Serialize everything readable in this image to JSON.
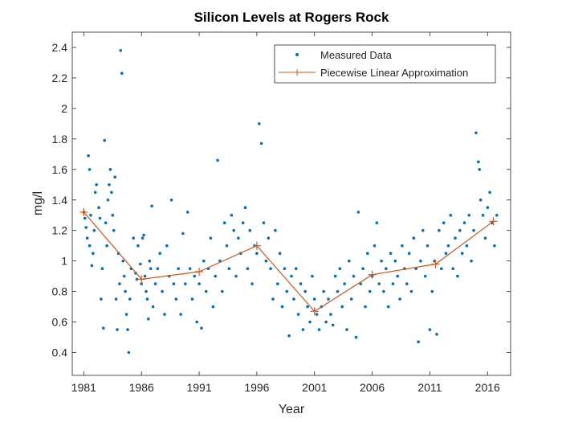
{
  "chart_data": {
    "type": "scatter",
    "title": "Silicon Levels at Rogers Rock",
    "xlabel": "Year",
    "ylabel": "mg/l",
    "xlim": [
      1980,
      2018
    ],
    "ylim": [
      0.25,
      2.5
    ],
    "xticks": [
      1981,
      1986,
      1991,
      1996,
      2001,
      2006,
      2011,
      2016
    ],
    "yticks": [
      0.4,
      0.6,
      0.8,
      1,
      1.2,
      1.4,
      1.6,
      1.8,
      2,
      2.2,
      2.4
    ],
    "ytick_labels": [
      "0.4",
      "0.6",
      "0.8",
      "1",
      "1.2",
      "1.4",
      "1.6",
      "1.8",
      "2",
      "2.2",
      "2.4"
    ],
    "legend_position": "top-right",
    "grid": false,
    "series": [
      {
        "name": "Measured Data",
        "kind": "scatter",
        "color": "#0072BD",
        "points": [
          [
            1981.0,
            1.32
          ],
          [
            1981.1,
            1.28
          ],
          [
            1981.2,
            1.22
          ],
          [
            1981.3,
            1.15
          ],
          [
            1981.4,
            1.69
          ],
          [
            1981.5,
            1.6
          ],
          [
            1981.5,
            1.1
          ],
          [
            1981.6,
            1.3
          ],
          [
            1981.7,
            0.97
          ],
          [
            1981.8,
            1.05
          ],
          [
            1981.9,
            1.2
          ],
          [
            1982.0,
            1.45
          ],
          [
            1982.1,
            1.5
          ],
          [
            1982.3,
            1.35
          ],
          [
            1982.4,
            1.28
          ],
          [
            1982.5,
            0.75
          ],
          [
            1982.6,
            0.95
          ],
          [
            1982.7,
            0.56
          ],
          [
            1982.8,
            1.79
          ],
          [
            1982.9,
            1.25
          ],
          [
            1983.0,
            1.1
          ],
          [
            1983.1,
            1.4
          ],
          [
            1983.2,
            1.5
          ],
          [
            1983.3,
            1.6
          ],
          [
            1983.4,
            1.45
          ],
          [
            1983.5,
            1.3
          ],
          [
            1983.6,
            1.2
          ],
          [
            1983.7,
            1.55
          ],
          [
            1983.8,
            0.75
          ],
          [
            1983.9,
            0.55
          ],
          [
            1984.0,
            1.05
          ],
          [
            1984.1,
            0.85
          ],
          [
            1984.2,
            2.38
          ],
          [
            1984.3,
            2.23
          ],
          [
            1984.4,
            1.0
          ],
          [
            1984.5,
            0.9
          ],
          [
            1984.6,
            0.8
          ],
          [
            1984.7,
            0.65
          ],
          [
            1984.8,
            0.55
          ],
          [
            1984.9,
            0.4
          ],
          [
            1985.0,
            0.75
          ],
          [
            1985.1,
            0.95
          ],
          [
            1985.3,
            1.15
          ],
          [
            1985.5,
            0.92
          ],
          [
            1985.6,
            0.88
          ],
          [
            1985.7,
            1.1
          ],
          [
            1985.9,
            0.98
          ],
          [
            1986.0,
            0.85
          ],
          [
            1986.1,
            1.15
          ],
          [
            1986.2,
            1.17
          ],
          [
            1986.3,
            0.9
          ],
          [
            1986.4,
            0.8
          ],
          [
            1986.5,
            0.75
          ],
          [
            1986.6,
            0.62
          ],
          [
            1986.7,
            1.0
          ],
          [
            1986.8,
            0.95
          ],
          [
            1986.9,
            1.36
          ],
          [
            1987.0,
            0.7
          ],
          [
            1987.2,
            0.85
          ],
          [
            1987.4,
            0.95
          ],
          [
            1987.6,
            1.05
          ],
          [
            1987.8,
            0.8
          ],
          [
            1988.0,
            0.65
          ],
          [
            1988.2,
            1.1
          ],
          [
            1988.4,
            0.9
          ],
          [
            1988.6,
            1.4
          ],
          [
            1988.8,
            0.85
          ],
          [
            1989.0,
            0.75
          ],
          [
            1989.2,
            0.95
          ],
          [
            1989.4,
            0.65
          ],
          [
            1989.6,
            1.18
          ],
          [
            1989.8,
            0.85
          ],
          [
            1990.0,
            1.32
          ],
          [
            1990.2,
            0.95
          ],
          [
            1990.4,
            0.75
          ],
          [
            1990.6,
            0.9
          ],
          [
            1990.8,
            0.6
          ],
          [
            1991.0,
            0.85
          ],
          [
            1991.2,
            0.56
          ],
          [
            1991.4,
            1.0
          ],
          [
            1991.6,
            0.8
          ],
          [
            1991.8,
            0.95
          ],
          [
            1992.0,
            1.15
          ],
          [
            1992.2,
            0.7
          ],
          [
            1992.4,
            0.9
          ],
          [
            1992.6,
            1.66
          ],
          [
            1992.8,
            1.0
          ],
          [
            1993.0,
            0.8
          ],
          [
            1993.2,
            1.25
          ],
          [
            1993.4,
            1.1
          ],
          [
            1993.6,
            0.95
          ],
          [
            1993.8,
            1.3
          ],
          [
            1994.0,
            1.2
          ],
          [
            1994.2,
            0.9
          ],
          [
            1994.4,
            1.15
          ],
          [
            1994.6,
            1.05
          ],
          [
            1994.8,
            1.25
          ],
          [
            1995.0,
            1.35
          ],
          [
            1995.2,
            0.95
          ],
          [
            1995.4,
            1.2
          ],
          [
            1995.6,
            0.85
          ],
          [
            1995.8,
            1.1
          ],
          [
            1996.0,
            1.05
          ],
          [
            1996.2,
            1.9
          ],
          [
            1996.4,
            1.77
          ],
          [
            1996.6,
            1.25
          ],
          [
            1996.8,
            1.0
          ],
          [
            1997.0,
            1.15
          ],
          [
            1997.2,
            0.95
          ],
          [
            1997.4,
            0.75
          ],
          [
            1997.6,
            1.2
          ],
          [
            1997.8,
            0.85
          ],
          [
            1998.0,
            1.05
          ],
          [
            1998.2,
            0.7
          ],
          [
            1998.4,
            0.95
          ],
          [
            1998.6,
            0.8
          ],
          [
            1998.8,
            0.51
          ],
          [
            1999.0,
            0.9
          ],
          [
            1999.2,
            0.75
          ],
          [
            1999.4,
            0.95
          ],
          [
            1999.6,
            0.65
          ],
          [
            1999.8,
            0.85
          ],
          [
            2000.0,
            0.55
          ],
          [
            2000.2,
            0.8
          ],
          [
            2000.4,
            0.7
          ],
          [
            2000.6,
            0.6
          ],
          [
            2000.8,
            0.9
          ],
          [
            2001.0,
            0.75
          ],
          [
            2001.2,
            0.65
          ],
          [
            2001.4,
            0.55
          ],
          [
            2001.6,
            0.7
          ],
          [
            2001.8,
            0.8
          ],
          [
            2002.0,
            0.6
          ],
          [
            2002.2,
            0.75
          ],
          [
            2002.4,
            0.65
          ],
          [
            2002.6,
            0.58
          ],
          [
            2002.8,
            0.9
          ],
          [
            2003.0,
            0.8
          ],
          [
            2003.2,
            0.95
          ],
          [
            2003.4,
            0.7
          ],
          [
            2003.6,
            0.85
          ],
          [
            2003.8,
            0.55
          ],
          [
            2004.0,
            1.0
          ],
          [
            2004.2,
            0.75
          ],
          [
            2004.4,
            0.9
          ],
          [
            2004.6,
            0.5
          ],
          [
            2004.8,
            1.32
          ],
          [
            2005.0,
            0.85
          ],
          [
            2005.2,
            0.95
          ],
          [
            2005.4,
            0.7
          ],
          [
            2005.6,
            1.05
          ],
          [
            2005.8,
            0.8
          ],
          [
            2006.0,
            0.9
          ],
          [
            2006.2,
            1.1
          ],
          [
            2006.4,
            1.25
          ],
          [
            2006.6,
            0.85
          ],
          [
            2006.8,
            1.0
          ],
          [
            2007.0,
            0.8
          ],
          [
            2007.2,
            0.95
          ],
          [
            2007.4,
            0.7
          ],
          [
            2007.6,
            1.05
          ],
          [
            2007.8,
            0.85
          ],
          [
            2008.0,
            1.0
          ],
          [
            2008.2,
            0.9
          ],
          [
            2008.4,
            0.75
          ],
          [
            2008.6,
            1.1
          ],
          [
            2008.8,
            0.95
          ],
          [
            2009.0,
            0.85
          ],
          [
            2009.2,
            1.05
          ],
          [
            2009.4,
            0.8
          ],
          [
            2009.6,
            1.15
          ],
          [
            2009.8,
            0.95
          ],
          [
            2010.0,
            0.47
          ],
          [
            2010.2,
            1.0
          ],
          [
            2010.4,
            1.2
          ],
          [
            2010.6,
            0.9
          ],
          [
            2010.8,
            1.1
          ],
          [
            2011.0,
            0.55
          ],
          [
            2011.2,
            0.8
          ],
          [
            2011.4,
            1.0
          ],
          [
            2011.6,
            0.52
          ],
          [
            2011.8,
            1.2
          ],
          [
            2012.0,
            0.95
          ],
          [
            2012.2,
            1.25
          ],
          [
            2012.4,
            1.05
          ],
          [
            2012.6,
            1.1
          ],
          [
            2012.8,
            1.3
          ],
          [
            2013.0,
            0.95
          ],
          [
            2013.2,
            1.15
          ],
          [
            2013.4,
            0.9
          ],
          [
            2013.6,
            1.2
          ],
          [
            2013.8,
            1.05
          ],
          [
            2014.0,
            1.25
          ],
          [
            2014.2,
            1.1
          ],
          [
            2014.4,
            1.3
          ],
          [
            2014.6,
            1.0
          ],
          [
            2014.8,
            1.2
          ],
          [
            2015.0,
            1.84
          ],
          [
            2015.2,
            1.65
          ],
          [
            2015.3,
            1.6
          ],
          [
            2015.4,
            1.4
          ],
          [
            2015.6,
            1.3
          ],
          [
            2015.8,
            1.15
          ],
          [
            2016.0,
            1.35
          ],
          [
            2016.2,
            1.45
          ],
          [
            2016.4,
            1.25
          ],
          [
            2016.6,
            1.1
          ],
          [
            2016.8,
            1.3
          ]
        ]
      },
      {
        "name": "Piecewise Linear Approximation",
        "kind": "line",
        "color": "#D95319",
        "marker": "+",
        "points": [
          [
            1981,
            1.32
          ],
          [
            1986,
            0.88
          ],
          [
            1991,
            0.93
          ],
          [
            1996,
            1.1
          ],
          [
            2001,
            0.67
          ],
          [
            2006,
            0.91
          ],
          [
            2011.5,
            0.98
          ],
          [
            2016.5,
            1.26
          ]
        ]
      }
    ]
  }
}
